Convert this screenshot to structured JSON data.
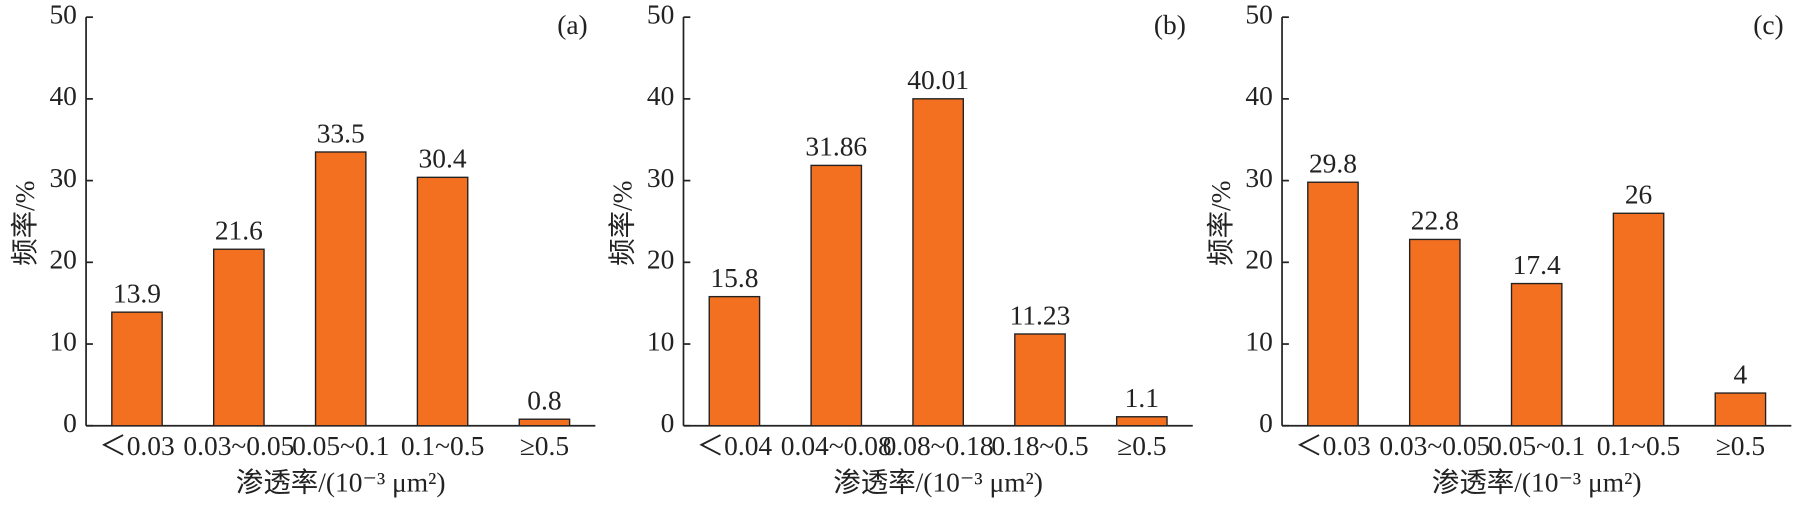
{
  "chart_data": [
    {
      "type": "bar",
      "panel": "(a)",
      "ylabel": "频率/%",
      "xlabel": "渗透率/(10⁻³ μm²)",
      "categories": [
        "＜0.03",
        "0.03~0.05",
        "0.05~0.1",
        "0.1~0.5",
        "≥0.5"
      ],
      "values": [
        13.9,
        21.6,
        33.5,
        30.4,
        0.8
      ],
      "color": "#f37021",
      "ylim": [
        0,
        50
      ],
      "yticks": [
        0,
        10,
        20,
        30,
        40,
        50
      ]
    },
    {
      "type": "bar",
      "panel": "(b)",
      "ylabel": "频率/%",
      "xlabel": "渗透率/(10⁻³ μm²)",
      "categories": [
        "＜0.04",
        "0.04~0.08",
        "0.08~0.18",
        "0.18~0.5",
        "≥0.5"
      ],
      "values": [
        15.8,
        31.86,
        40.01,
        11.23,
        1.1
      ],
      "color": "#f37021",
      "ylim": [
        0,
        50
      ],
      "yticks": [
        0,
        10,
        20,
        30,
        40,
        50
      ]
    },
    {
      "type": "bar",
      "panel": "(c)",
      "ylabel": "频率/%",
      "xlabel": "渗透率/(10⁻³ μm²)",
      "categories": [
        "＜0.03",
        "0.03~0.05",
        "0.05~0.1",
        "0.1~0.5",
        "≥0.5"
      ],
      "values": [
        29.8,
        22.8,
        17.4,
        26,
        4
      ],
      "color": "#f37021",
      "ylim": [
        0,
        50
      ],
      "yticks": [
        0,
        10,
        20,
        30,
        40,
        50
      ]
    }
  ]
}
